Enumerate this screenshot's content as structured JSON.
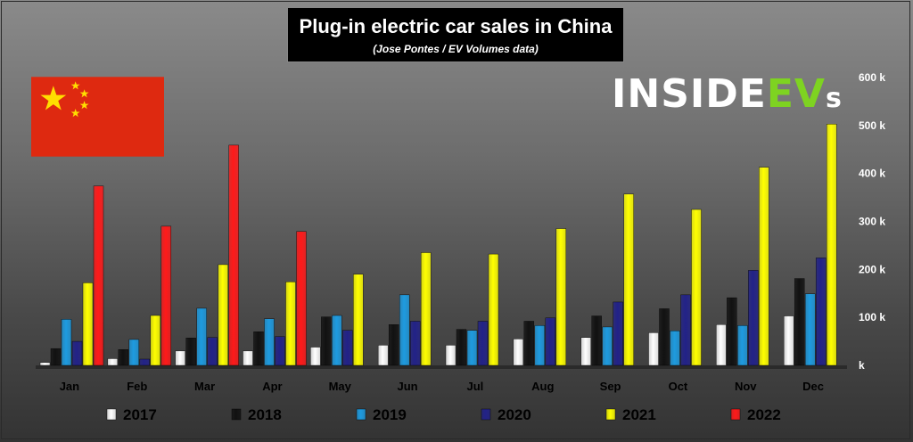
{
  "header": {
    "title": "Plug-in electric car sales in China",
    "subtitle": "(Jose Pontes / EV Volumes data)"
  },
  "logo": {
    "part1": "INSIDE",
    "part2": "EV",
    "part3": "s"
  },
  "chart_data": {
    "type": "bar",
    "title": "Plug-in electric car sales in China",
    "subtitle": "(Jose Pontes / EV Volumes data)",
    "categories": [
      "Jan",
      "Feb",
      "Mar",
      "Apr",
      "May",
      "Jun",
      "Jul",
      "Aug",
      "Sep",
      "Oct",
      "Nov",
      "Dec"
    ],
    "ylim": [
      0,
      600
    ],
    "yticks": [
      0,
      100,
      200,
      300,
      400,
      500,
      600
    ],
    "ytick_labels": [
      "k",
      "100 k",
      "200 k",
      "300 k",
      "400 k",
      "500 k",
      "600 k"
    ],
    "y_axis_position": "right",
    "legend_position": "bottom",
    "series": [
      {
        "name": "2017",
        "color": "#ffffff",
        "values": [
          6,
          14,
          30,
          30,
          38,
          42,
          42,
          55,
          58,
          68,
          85,
          103
        ]
      },
      {
        "name": "2018",
        "color": "#111111",
        "values": [
          35,
          33,
          57,
          70,
          101,
          85,
          75,
          92,
          103,
          118,
          141,
          181
        ]
      },
      {
        "name": "2019",
        "color": "#1e9be0",
        "values": [
          96,
          54,
          119,
          97,
          104,
          147,
          73,
          83,
          80,
          72,
          83,
          149
        ]
      },
      {
        "name": "2020",
        "color": "#222288",
        "values": [
          50,
          13,
          58,
          60,
          73,
          92,
          92,
          99,
          132,
          147,
          198,
          224
        ]
      },
      {
        "name": "2021",
        "color": "#ffff00",
        "values": [
          172,
          104,
          210,
          174,
          190,
          235,
          232,
          285,
          357,
          325,
          413,
          503
        ]
      },
      {
        "name": "2022",
        "color": "#ff1a1a",
        "values": [
          374,
          290,
          459,
          279,
          null,
          null,
          null,
          null,
          null,
          null,
          null,
          null
        ]
      }
    ]
  }
}
